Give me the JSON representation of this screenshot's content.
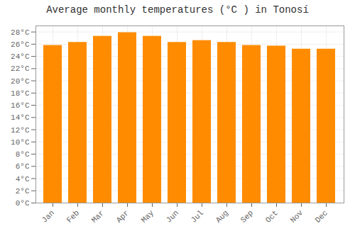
{
  "chart_data": {
    "type": "bar",
    "title": "Average monthly temperatures (°C ) in Tonosí",
    "categories": [
      "Jan",
      "Feb",
      "Mar",
      "Apr",
      "May",
      "Jun",
      "Jul",
      "Aug",
      "Sep",
      "Oct",
      "Nov",
      "Dec"
    ],
    "values": [
      25.8,
      26.3,
      27.3,
      27.9,
      27.3,
      26.3,
      26.6,
      26.3,
      25.8,
      25.7,
      25.2,
      25.2
    ],
    "color": "#FF8C00",
    "ylim": [
      0,
      29
    ],
    "yticks": [
      {
        "value": 0,
        "label": "0°C"
      },
      {
        "value": 2,
        "label": "2°C"
      },
      {
        "value": 4,
        "label": "4°C"
      },
      {
        "value": 6,
        "label": "6°C"
      },
      {
        "value": 8,
        "label": "8°C"
      },
      {
        "value": 10,
        "label": "10°C"
      },
      {
        "value": 12,
        "label": "12°C"
      },
      {
        "value": 14,
        "label": "14°C"
      },
      {
        "value": 16,
        "label": "16°C"
      },
      {
        "value": 18,
        "label": "18°C"
      },
      {
        "value": 20,
        "label": "20°C"
      },
      {
        "value": 22,
        "label": "22°C"
      },
      {
        "value": 24,
        "label": "24°C"
      },
      {
        "value": 26,
        "label": "26°C"
      },
      {
        "value": 28,
        "label": "28°C"
      }
    ],
    "grid": true
  }
}
